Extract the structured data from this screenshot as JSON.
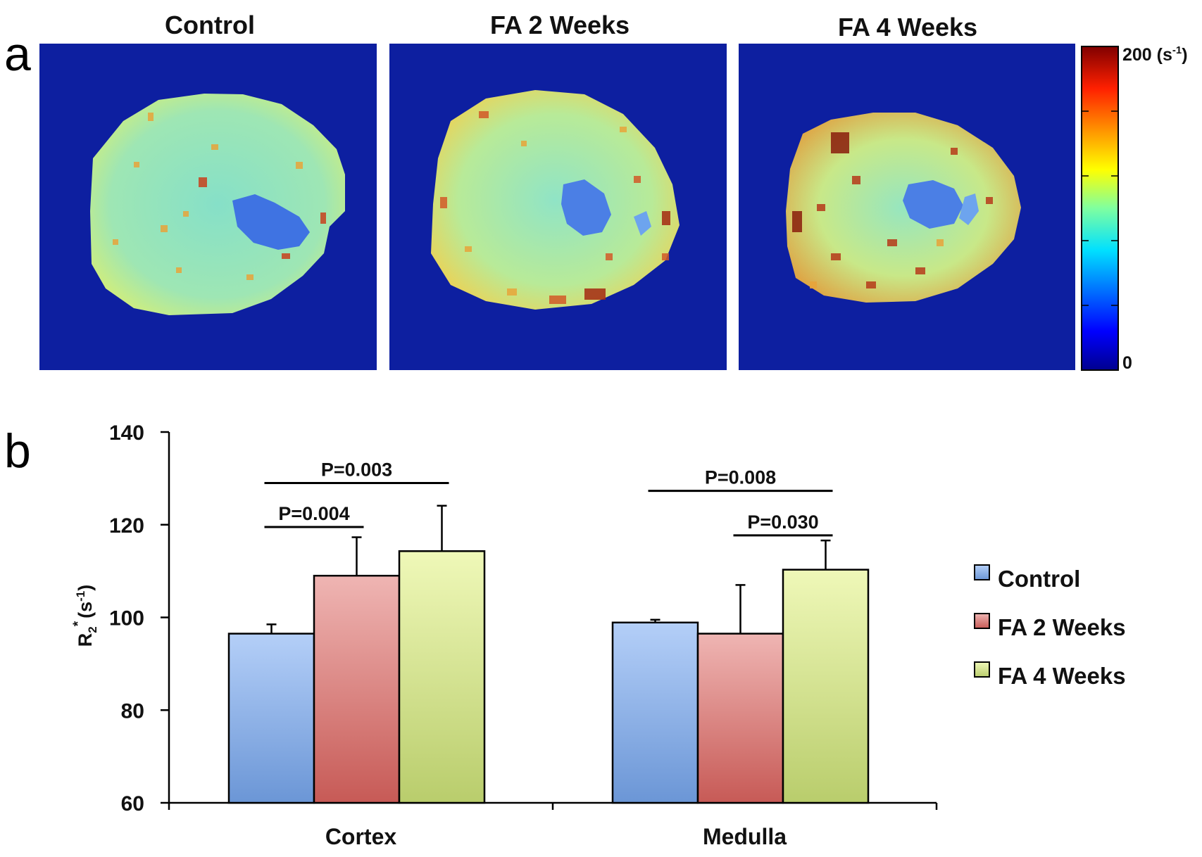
{
  "panel_a": {
    "letter": "a",
    "titles": [
      "Control",
      "FA 2 Weeks",
      "FA 4 Weeks"
    ],
    "colorbar": {
      "max_prefix": "200 (s",
      "max_sup": "-1",
      "max_suffix": ")",
      "min_label": "0",
      "min_value": 0,
      "max_value": 200
    },
    "colors": {
      "background": "#0d1fa0",
      "tissue": "#8ee3c0",
      "medulla": "#3a6fe0"
    }
  },
  "panel_b": {
    "letter": "b"
  },
  "chart_data": {
    "type": "bar",
    "categories": [
      "Cortex",
      "Medulla"
    ],
    "series": [
      {
        "name": "Control",
        "values": [
          96.5,
          98.9
        ],
        "errors": [
          2.0,
          0.6
        ],
        "color_top": "#b4cff8",
        "color_bottom": "#6b96d6"
      },
      {
        "name": "FA 2 Weeks",
        "values": [
          109.0,
          96.5
        ],
        "errors": [
          8.3,
          10.5
        ],
        "color_top": "#efb5b3",
        "color_bottom": "#c75a56"
      },
      {
        "name": "FA 4 Weeks",
        "values": [
          114.3,
          110.3
        ],
        "errors": [
          9.8,
          6.3
        ],
        "color_top": "#eff8b8",
        "color_bottom": "#b9cd6c"
      }
    ],
    "ylabel_main": "R",
    "ylabel_sub": "2",
    "ylabel_sup": "*",
    "ylabel_unit_prefix": "(s",
    "ylabel_unit_sup": "-1",
    "ylabel_unit_suffix": ")",
    "ylim": [
      60,
      140
    ],
    "yticks": [
      60,
      80,
      100,
      120,
      140
    ],
    "ytick_labels": [
      "60",
      "80",
      "100",
      "120",
      "140"
    ],
    "legend_position": "right",
    "significance": [
      {
        "label": "P=0.003",
        "category": "Cortex",
        "from_series": 0,
        "to_series": 2,
        "y": 129
      },
      {
        "label": "P=0.004",
        "category": "Cortex",
        "from_series": 0,
        "to_series": 1,
        "y": 119.5
      },
      {
        "label": "P=0.008",
        "category": "Medulla",
        "from_series": 0,
        "to_series": 2,
        "y": 127.3
      },
      {
        "label": "P=0.030",
        "category": "Medulla",
        "from_series": 1,
        "to_series": 2,
        "y": 117.7
      }
    ]
  }
}
